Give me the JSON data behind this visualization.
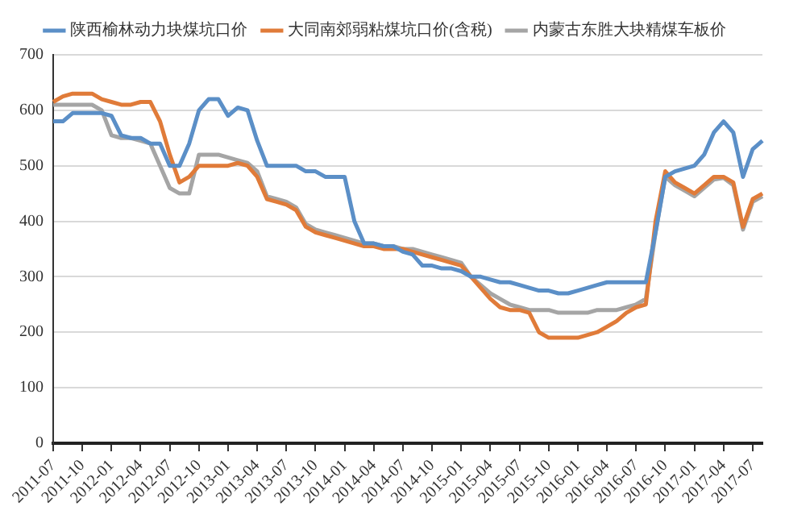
{
  "chart_data": {
    "type": "line",
    "categories": [
      "2011-07",
      null,
      null,
      "2011-10",
      null,
      null,
      "2012-01",
      null,
      null,
      "2012-04",
      null,
      null,
      "2012-07",
      null,
      null,
      "2012-10",
      null,
      null,
      "2013-01",
      null,
      null,
      "2013-04",
      null,
      null,
      "2013-07",
      null,
      null,
      "2013-10",
      null,
      null,
      "2014-01",
      null,
      null,
      "2014-04",
      null,
      null,
      "2014-07",
      null,
      null,
      "2014-10",
      null,
      null,
      "2015-01",
      null,
      null,
      "2015-04",
      null,
      null,
      "2015-07",
      null,
      null,
      "2015-10",
      null,
      null,
      "2016-01",
      null,
      null,
      "2016-04",
      null,
      null,
      "2016-07",
      null,
      null,
      "2016-10",
      null,
      null,
      "2017-01",
      null,
      null,
      "2017-04",
      null,
      null,
      "2017-07",
      null
    ],
    "series": [
      {
        "name": "陕西榆林动力块煤坑口价",
        "color": "#5b8fc7",
        "values": [
          580,
          580,
          595,
          595,
          595,
          595,
          590,
          555,
          550,
          550,
          540,
          540,
          500,
          500,
          540,
          600,
          620,
          620,
          590,
          605,
          600,
          545,
          500,
          500,
          500,
          500,
          490,
          490,
          480,
          480,
          480,
          400,
          360,
          360,
          355,
          355,
          345,
          340,
          320,
          320,
          315,
          315,
          310,
          300,
          300,
          295,
          290,
          290,
          285,
          280,
          275,
          275,
          270,
          270,
          275,
          280,
          285,
          290,
          290,
          290,
          290,
          290,
          380,
          480,
          490,
          495,
          500,
          520,
          560,
          580,
          560,
          480,
          530,
          545
        ]
      },
      {
        "name": "大同南郊弱粘煤坑口价(含税)",
        "color": "#e07b39",
        "values": [
          615,
          625,
          630,
          630,
          630,
          620,
          615,
          610,
          610,
          615,
          615,
          580,
          520,
          470,
          480,
          500,
          500,
          500,
          500,
          505,
          500,
          480,
          440,
          435,
          430,
          420,
          390,
          380,
          375,
          370,
          365,
          360,
          355,
          355,
          350,
          350,
          350,
          345,
          340,
          335,
          330,
          325,
          320,
          300,
          280,
          260,
          245,
          240,
          240,
          235,
          200,
          190,
          190,
          190,
          190,
          195,
          200,
          210,
          220,
          235,
          245,
          250,
          400,
          490,
          470,
          460,
          450,
          465,
          480,
          480,
          470,
          390,
          440,
          450
        ]
      },
      {
        "name": "内蒙古东胜大块精煤车板价",
        "color": "#a5a5a5",
        "values": [
          610,
          610,
          610,
          610,
          610,
          600,
          555,
          550,
          550,
          545,
          540,
          500,
          460,
          450,
          450,
          520,
          520,
          520,
          515,
          510,
          505,
          490,
          445,
          440,
          435,
          425,
          395,
          385,
          380,
          375,
          370,
          365,
          360,
          360,
          355,
          355,
          350,
          350,
          345,
          340,
          335,
          330,
          325,
          300,
          285,
          270,
          260,
          250,
          245,
          240,
          240,
          240,
          235,
          235,
          235,
          235,
          240,
          240,
          240,
          245,
          250,
          260,
          380,
          480,
          465,
          455,
          445,
          460,
          475,
          478,
          465,
          385,
          435,
          445
        ]
      }
    ],
    "ylim": [
      0,
      700
    ],
    "yticks": [
      0,
      100,
      200,
      300,
      400,
      500,
      600,
      700
    ],
    "grid": "y",
    "legend": "top",
    "marker": "none",
    "line_style": "solid"
  }
}
